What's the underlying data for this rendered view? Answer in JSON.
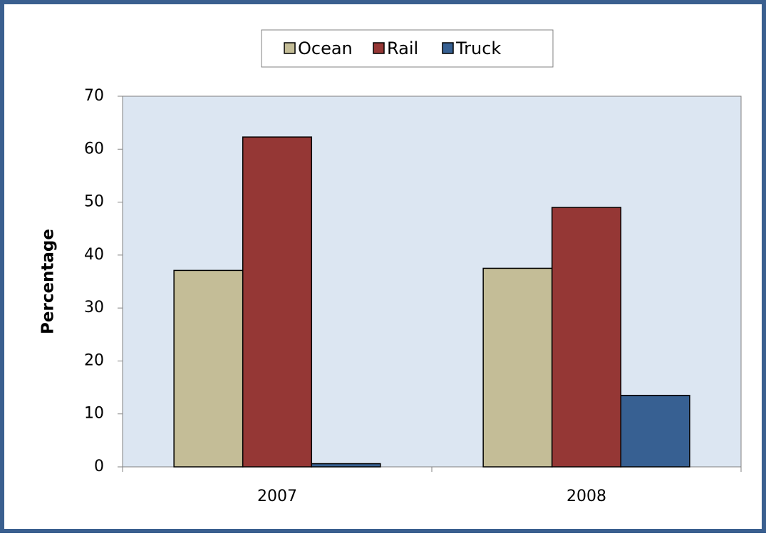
{
  "chart_data": {
    "type": "bar",
    "categories": [
      "2007",
      "2008"
    ],
    "series": [
      {
        "name": "Ocean",
        "color": "#c4bd97",
        "values": [
          37.1,
          37.5
        ]
      },
      {
        "name": "Rail",
        "color": "#953735",
        "values": [
          62.3,
          49
        ]
      },
      {
        "name": "Truck",
        "color": "#376092",
        "values": [
          0.6,
          13.5
        ]
      }
    ],
    "y_label": "Percentage",
    "ylim": [
      0,
      70
    ],
    "yticks": [
      0,
      10,
      20,
      30,
      40,
      50,
      60,
      70
    ],
    "legend": "top",
    "plot_background": "#dce6f2"
  }
}
